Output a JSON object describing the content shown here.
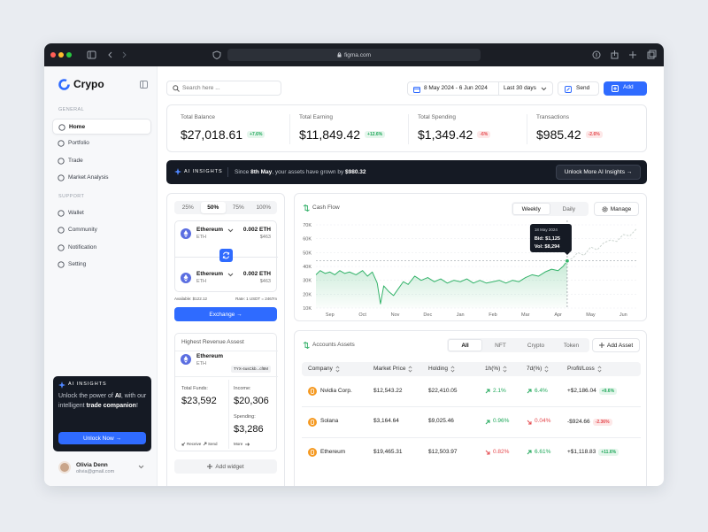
{
  "browser": {
    "url": "figma.com"
  },
  "sidebar": {
    "brand": "Crypo",
    "sections": [
      {
        "title": "GENERAL",
        "items": [
          "Home",
          "Portfolio",
          "Trade",
          "Market Analysis"
        ],
        "active": 0
      },
      {
        "title": "SUPPORT",
        "items": [
          "Wallet",
          "Community",
          "Notification",
          "Setting"
        ]
      }
    ],
    "ai_card": {
      "label": "AI INSIGHTS",
      "text_1": "Unlock the power of ",
      "bold_1": "AI",
      "text_2": ", with our intelligent ",
      "bold_2": "trade companion",
      "text_3": "!",
      "button": "Unlock Now →"
    },
    "user": {
      "name": "Olivia Denn",
      "email": "olivia@gmail.com"
    }
  },
  "toolbar": {
    "search": "Search here ...",
    "date_range": "8 May 2024 - 6 Jun 2024",
    "period": "Last 30 days",
    "send": "Send",
    "add": "Add"
  },
  "stats": [
    {
      "label": "Total Balance",
      "value": "$27,018.61",
      "change": "+7.6%"
    },
    {
      "label": "Total Earning",
      "value": "$11,849.42",
      "change": "+12.6%"
    },
    {
      "label": "Total Spending",
      "value": "$1,349.42",
      "change": "-6%"
    },
    {
      "label": "Transactions",
      "value": "$985.42",
      "change": "-2.6%"
    }
  ],
  "ai_banner": {
    "label": "AI INSIGHTS",
    "text_1": "Since ",
    "bold_1": "8th May",
    "text_2": ", your assets have grown by ",
    "bold_2": "$980.32",
    "button": "Unlock More AI Insights →"
  },
  "exchange": {
    "tabs": [
      "25%",
      "50%",
      "75%",
      "100%"
    ],
    "selected": 1,
    "from": {
      "name": "Ethereum",
      "symbol": "ETH",
      "amount": "0.002 ETH",
      "usd": "$463"
    },
    "to": {
      "name": "Ethereum",
      "symbol": "ETH",
      "amount": "0.002 ETH",
      "usd": "$463"
    },
    "available": "Available: $122.12",
    "rate": "Rate: 1 USDT = 2467m",
    "button": "Exchange →"
  },
  "revenue": {
    "title": "Highest Revenue Assest",
    "name": "Ethereum",
    "symbol": "ETH",
    "address": "TYX-4usCkb...cf8M",
    "total_funds_label": "Total Funds:",
    "total_funds": "$23,592",
    "income_label": "Income:",
    "income": "$20,306",
    "spending_label": "Spending:",
    "spending": "$3,286",
    "receive": "Receive",
    "send": "Send",
    "more": "More"
  },
  "add_widget": "Add widget",
  "chart_data": {
    "type": "line",
    "title": "Cash Flow",
    "controls": [
      "Weekly",
      "Daily"
    ],
    "selected": 0,
    "manage": "Manage",
    "x": [
      -0.43,
      -0.3,
      -0.15,
      0,
      0.15,
      0.3,
      0.45,
      0.6,
      0.8,
      1.0,
      1.15,
      1.3,
      1.45,
      1.55,
      1.65,
      1.8,
      1.95,
      2.1,
      2.25,
      2.4,
      2.6,
      2.8,
      3.0,
      3.2,
      3.4,
      3.6,
      3.8,
      4.0,
      4.2,
      4.4,
      4.6,
      4.8,
      5.0,
      5.2,
      5.4,
      5.6,
      5.8,
      6.0,
      6.2,
      6.4,
      6.6,
      6.8,
      7.0,
      7.15,
      7.28,
      7.45,
      7.6,
      7.8,
      8.0,
      8.2,
      8.4,
      8.6,
      8.8,
      9.0,
      9.2,
      9.4
    ],
    "series": [
      {
        "color": "#34b36a",
        "dashed": false,
        "area": true,
        "values": [
          34000,
          37000,
          35000,
          36000,
          34000,
          37000,
          35000,
          36000,
          34000,
          37000,
          33000,
          36000,
          28000,
          13000,
          26000,
          22000,
          19000,
          24000,
          29000,
          27000,
          33000,
          30000,
          32000,
          29000,
          31000,
          28000,
          30000,
          29000,
          31000,
          28000,
          30000,
          28000,
          29000,
          30000,
          28000,
          30000,
          29000,
          32000,
          34000,
          33000,
          36000,
          38000,
          37000,
          40000,
          44000,
          null,
          null,
          null,
          null,
          null,
          null,
          null,
          null,
          null,
          null,
          null
        ]
      },
      {
        "color": "#cdd6d1",
        "dashed": true,
        "area": false,
        "values": [
          null,
          null,
          null,
          null,
          null,
          null,
          null,
          null,
          null,
          null,
          null,
          null,
          null,
          null,
          null,
          null,
          null,
          null,
          null,
          null,
          null,
          null,
          null,
          null,
          null,
          null,
          null,
          null,
          null,
          null,
          null,
          null,
          null,
          null,
          null,
          null,
          null,
          null,
          null,
          null,
          null,
          null,
          null,
          null,
          44000,
          46000,
          50000,
          48000,
          54000,
          52000,
          57000,
          59000,
          58000,
          63000,
          62000,
          67000
        ]
      }
    ],
    "xlim": [
      -0.43,
      9.4
    ],
    "xticks": [
      {
        "value": 0,
        "label": "Sep"
      },
      {
        "value": 1,
        "label": "Oct"
      },
      {
        "value": 2,
        "label": "Nov"
      },
      {
        "value": 3,
        "label": "Dec"
      },
      {
        "value": 4,
        "label": "Jan"
      },
      {
        "value": 5,
        "label": "Feb"
      },
      {
        "value": 6,
        "label": "Mar"
      },
      {
        "value": 7,
        "label": "Apr"
      },
      {
        "value": 8,
        "label": "May"
      },
      {
        "value": 9,
        "label": "Jun"
      }
    ],
    "ylim": [
      10000,
      70000
    ],
    "yticks": [
      {
        "value": 10000,
        "label": "10K"
      },
      {
        "value": 20000,
        "label": "20K"
      },
      {
        "value": 30000,
        "label": "30K"
      },
      {
        "value": 40000,
        "label": "40K"
      },
      {
        "value": 50000,
        "label": "50K"
      },
      {
        "value": 60000,
        "label": "60K"
      },
      {
        "value": 70000,
        "label": "70K"
      }
    ],
    "grid": true,
    "tooltip": {
      "date": "18 May 2024",
      "bid": "Bid: $1,125",
      "vol": "Vol: $8,294"
    }
  },
  "assets": {
    "title": "Accounts Assets",
    "filters": [
      "All",
      "NFT",
      "Crypto",
      "Token"
    ],
    "selected": 0,
    "add": "Add Asset",
    "columns": [
      "Company",
      "Market Price",
      "Holding",
      "1h(%)",
      "7d(%)",
      "Profit/Loss"
    ],
    "rows": [
      {
        "company": "Nvidia Corp.",
        "price": "$12,543.22",
        "holding": "$22,410.05",
        "h1": "2.1%",
        "h1_trend": "up",
        "d7": "6.4%",
        "d7_trend": "up",
        "pl": "+$2,186.04",
        "pl_change": "+9.6%"
      },
      {
        "company": "Solana",
        "price": "$3,164.64",
        "holding": "$9,025.46",
        "h1": "0.96%",
        "h1_trend": "up",
        "d7": "0.04%",
        "d7_trend": "down",
        "pl": "-$924.66",
        "pl_change": "-2.36%"
      },
      {
        "company": "Ethereum",
        "price": "$19,465.31",
        "holding": "$12,503.97",
        "h1": "0.82%",
        "h1_trend": "down",
        "d7": "6.61%",
        "d7_trend": "up",
        "pl": "+$1,118.83",
        "pl_change": "+11.6%"
      }
    ]
  }
}
